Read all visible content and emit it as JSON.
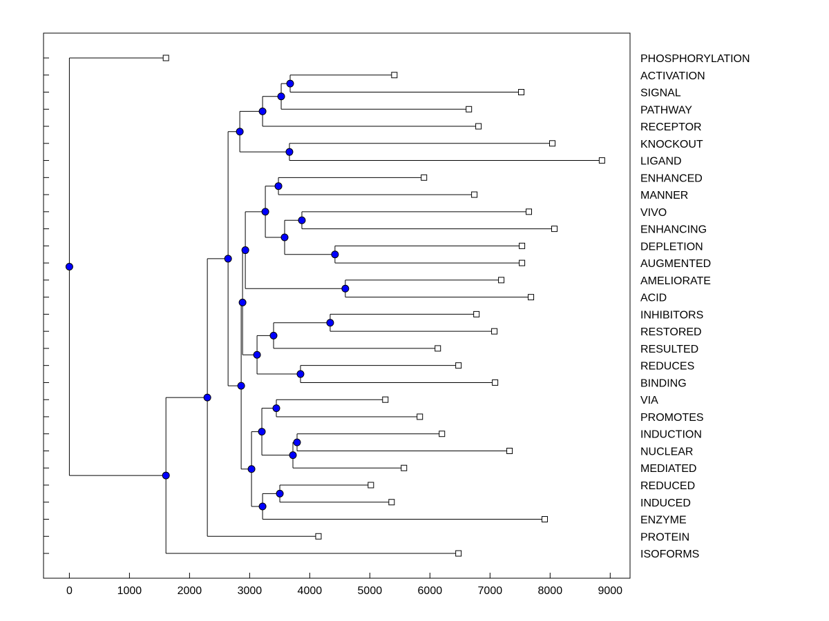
{
  "chart_data": {
    "type": "dendrogram",
    "title": "",
    "xlabel": "",
    "ylabel": "",
    "xlim": [
      -430,
      9330
    ],
    "xticks": [
      0,
      1000,
      2000,
      3000,
      4000,
      5000,
      6000,
      7000,
      8000,
      9000
    ],
    "node_color": "#0000ff",
    "tree": {
      "h": 0,
      "c": [
        {
          "label": "PHOSPHORYLATION",
          "h": 1607
        },
        {
          "h": 1607,
          "c": [
            {
              "h": 2296,
              "c": [
                {
                  "h": 2641,
                  "c": [
                    {
                      "h": 2836,
                      "c": [
                        {
                          "h": 3215,
                          "c": [
                            {
                              "h": 3525,
                              "c": [
                                {
                                  "h": 3674,
                                  "c": [
                                    {
                                      "label": "ACTIVATION",
                                      "h": 5408
                                    },
                                    {
                                      "label": "SIGNAL",
                                      "h": 7520
                                    }
                                  ]
                                },
                                {
                                  "label": "PATHWAY",
                                  "h": 6648
                                }
                              ]
                            },
                            {
                              "label": "RECEPTOR",
                              "h": 6808
                            }
                          ]
                        },
                        {
                          "h": 3662,
                          "c": [
                            {
                              "label": "KNOCKOUT",
                              "h": 8037
                            },
                            {
                              "label": "LIGAND",
                              "h": 8863
                            }
                          ]
                        }
                      ]
                    },
                    {
                      "h": 2859,
                      "c": [
                        {
                          "h": 2882,
                          "c": [
                            {
                              "h": 2928,
                              "c": [
                                {
                                  "h": 3261,
                                  "c": [
                                    {
                                      "h": 3479,
                                      "c": [
                                        {
                                          "label": "ENHANCED",
                                          "h": 5901
                                        },
                                        {
                                          "label": "MANNER",
                                          "h": 6739
                                        }
                                      ]
                                    },
                                    {
                                      "h": 3582,
                                      "c": [
                                        {
                                          "h": 3869,
                                          "c": [
                                            {
                                              "label": "VIVO",
                                              "h": 7646
                                            },
                                            {
                                              "label": "ENHANCING",
                                              "h": 8071
                                            }
                                          ]
                                        },
                                        {
                                          "h": 4420,
                                          "c": [
                                            {
                                              "label": "DEPLETION",
                                              "h": 7532
                                            },
                                            {
                                              "label": "AUGMENTED",
                                              "h": 7532
                                            }
                                          ]
                                        }
                                      ]
                                    }
                                  ]
                                },
                                {
                                  "h": 4592,
                                  "c": [
                                    {
                                      "label": "AMELIORATE",
                                      "h": 7187
                                    },
                                    {
                                      "label": "ACID",
                                      "h": 7681
                                    }
                                  ]
                                }
                              ]
                            },
                            {
                              "h": 3123,
                              "c": [
                                {
                                  "h": 3398,
                                  "c": [
                                    {
                                      "h": 4340,
                                      "c": [
                                        {
                                          "label": "INHIBITORS",
                                          "h": 6774
                                        },
                                        {
                                          "label": "RESTORED",
                                          "h": 7072
                                        }
                                      ]
                                    },
                                    {
                                      "label": "RESULTED",
                                      "h": 6131
                                    }
                                  ]
                                },
                                {
                                  "h": 3846,
                                  "c": [
                                    {
                                      "label": "REDUCES",
                                      "h": 6475
                                    },
                                    {
                                      "label": "BINDING",
                                      "h": 7084
                                    }
                                  ]
                                }
                              ]
                            }
                          ]
                        },
                        {
                          "h": 3031,
                          "c": [
                            {
                              "h": 3203,
                              "c": [
                                {
                                  "h": 3444,
                                  "c": [
                                    {
                                      "label": "VIA",
                                      "h": 5258
                                    },
                                    {
                                      "label": "PROMOTES",
                                      "h": 5832
                                    }
                                  ]
                                },
                                {
                                  "h": 3720,
                                  "c": [
                                    {
                                      "h": 3789,
                                      "c": [
                                        {
                                          "label": "INDUCTION",
                                          "h": 6200
                                        },
                                        {
                                          "label": "NUCLEAR",
                                          "h": 7325
                                        }
                                      ]
                                    },
                                    {
                                      "label": "MEDIATED",
                                      "h": 5568
                                    }
                                  ]
                                }
                              ]
                            },
                            {
                              "h": 3215,
                              "c": [
                                {
                                  "h": 3502,
                                  "c": [
                                    {
                                      "label": "REDUCED",
                                      "h": 5017
                                    },
                                    {
                                      "label": "INDUCED",
                                      "h": 5362
                                    }
                                  ]
                                },
                                {
                                  "label": "ENZYME",
                                  "h": 7910
                                }
                              ]
                            }
                          ]
                        }
                      ]
                    }
                  ]
                },
                {
                  "label": "PROTEIN",
                  "h": 4145
                }
              ]
            },
            {
              "label": "ISOFORMS",
              "h": 6475
            }
          ]
        }
      ]
    }
  }
}
